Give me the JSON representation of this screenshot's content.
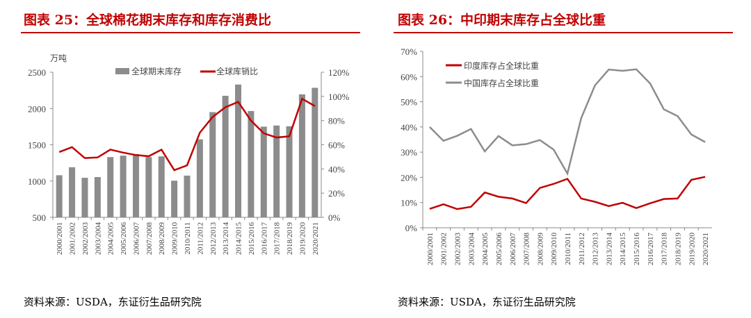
{
  "left": {
    "title": "图表 25：全球棉花期末库存和库存消费比",
    "source": "资料来源：USDA，东证衍生品研究院"
  },
  "right": {
    "title": "图表 26：中印期末库存占全球比重",
    "source": "资料来源：USDA，东证衍生品研究院"
  },
  "chart_data": [
    {
      "type": "bar+line",
      "unit_left": "万吨",
      "categories": [
        "2000/2001",
        "2001/2002",
        "2002/2003",
        "2003/2004",
        "2004/2005",
        "2005/2006",
        "2006/2007",
        "2007/2008",
        "2008/2009",
        "2009/2010",
        "2010/2011",
        "2011/2012",
        "2012/2013",
        "2013/2014",
        "2014/2015",
        "2015/2016",
        "2016/2017",
        "2017/2018",
        "2018/2019",
        "2019/2020",
        "2020/2021"
      ],
      "series": [
        {
          "name": "全球期末库存",
          "type": "bar",
          "axis": "left",
          "color": "#8c8c8c",
          "values": [
            1080,
            1190,
            1045,
            1055,
            1330,
            1350,
            1370,
            1330,
            1340,
            1005,
            1075,
            1575,
            1950,
            2175,
            2330,
            1965,
            1750,
            1765,
            1755,
            2195,
            2285
          ]
        },
        {
          "name": "全球库销比",
          "type": "line",
          "axis": "right",
          "color": "#c00000",
          "values": [
            54,
            58,
            49,
            49.5,
            56,
            53.5,
            51.5,
            50.5,
            56,
            39,
            43,
            70,
            83,
            91,
            95.5,
            80,
            69.5,
            66,
            67,
            98,
            92
          ]
        }
      ],
      "ylim_left": [
        500,
        2500
      ],
      "yticks_left": [
        500,
        1000,
        1500,
        2000,
        2500
      ],
      "ylim_right": [
        0,
        120
      ],
      "yticks_right": [
        "0%",
        "20%",
        "40%",
        "60%",
        "80%",
        "100%",
        "120%"
      ],
      "legend": "top"
    },
    {
      "type": "line",
      "categories": [
        "2000/2001",
        "2001/2002",
        "2002/2003",
        "2003/2004",
        "2004/2005",
        "2005/2006",
        "2006/2007",
        "2007/2008",
        "2008/2009",
        "2009/2010",
        "2010/2011",
        "2011/2012",
        "2012/2013",
        "2013/2014",
        "2014/2015",
        "2015/2016",
        "2016/2017",
        "2017/2018",
        "2018/2019",
        "2019/2020",
        "2020/2021"
      ],
      "series": [
        {
          "name": "印度库存占全球比重",
          "color": "#c00000",
          "values": [
            7.5,
            9.3,
            7.4,
            8.3,
            14,
            12.3,
            11.6,
            9.8,
            15.8,
            17.4,
            19.4,
            11.6,
            10.3,
            8.6,
            9.9,
            7.8,
            9.7,
            11.4,
            11.6,
            19,
            20.2
          ]
        },
        {
          "name": "中国库存占全球比重",
          "color": "#8c8c8c",
          "values": [
            40,
            34.5,
            36.5,
            39.2,
            30.3,
            36.4,
            32.7,
            33.2,
            34.8,
            31,
            21.5,
            43.5,
            56.5,
            62.8,
            62.3,
            62.9,
            57.3,
            47,
            44.3,
            37,
            34
          ]
        }
      ],
      "ylim": [
        0,
        70
      ],
      "yticks": [
        "0%",
        "10%",
        "20%",
        "30%",
        "40%",
        "50%",
        "60%",
        "70%"
      ],
      "legend": "top-left"
    }
  ]
}
